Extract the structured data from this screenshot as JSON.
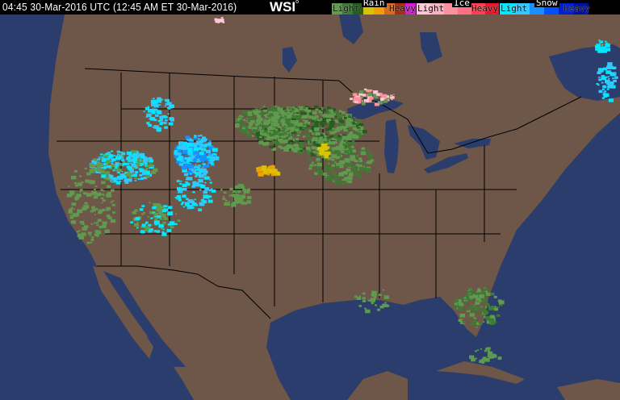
{
  "header": {
    "timestamp": "04:45 30-Mar-2016 UTC  (12:45 AM ET 30-Mar-2016)",
    "logo": "WSI"
  },
  "legend": {
    "rain": {
      "title": "Rain",
      "light": "Light",
      "heavy": "Heavy",
      "colors": [
        "#5f9a4f",
        "#3f7a33",
        "#245d1f",
        "#d9c400",
        "#f0a000",
        "#d86a20",
        "#a03010",
        "#d020d0"
      ]
    },
    "ice": {
      "title": "Ice",
      "light": "Light",
      "heavy": "Heavy",
      "colors": [
        "#ffc8d8",
        "#ffb0c0",
        "#ff90a0",
        "#ff7080",
        "#ff4050",
        "#e81830"
      ]
    },
    "snow": {
      "title": "Snow",
      "light": "Light",
      "heavy": "Heavy",
      "colors": [
        "#00e8ff",
        "#30c8ff",
        "#1890ff",
        "#0050ff",
        "#0020d0",
        "#0010a0"
      ]
    }
  },
  "map": {
    "land_color": "#6e5648",
    "water_color": "#2b3d6c",
    "border_color": "#000000"
  }
}
